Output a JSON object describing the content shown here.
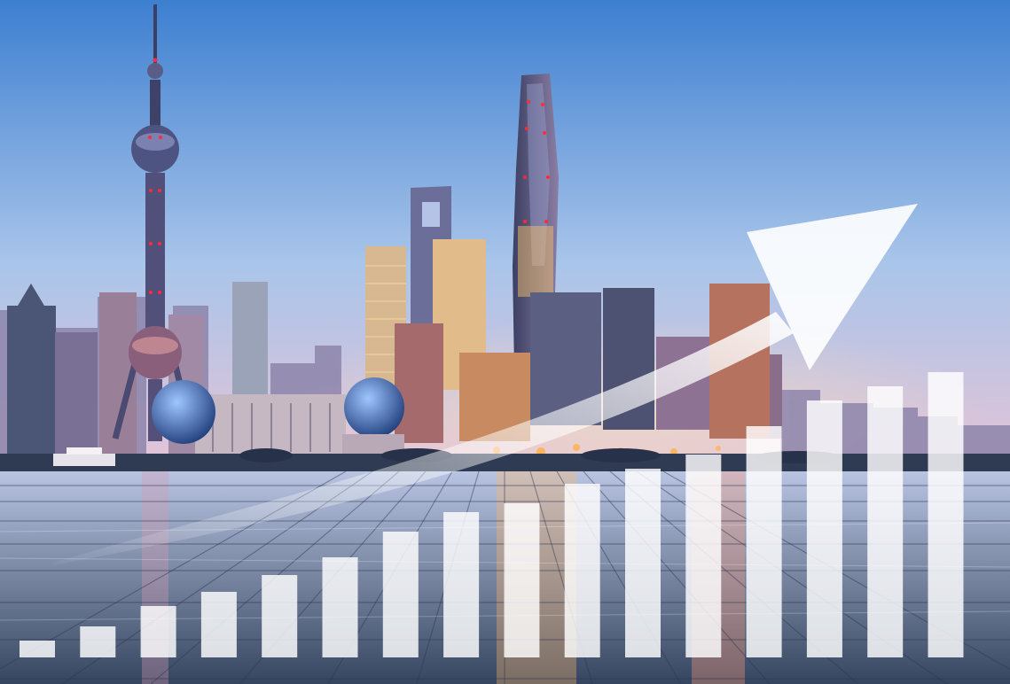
{
  "scene": {
    "subject": "city-skyline-at-dusk",
    "foreground": "reflective-plaza-floor",
    "overlay": "rising-bar-chart-with-upward-arrow"
  },
  "colors": {
    "sky_top": "#3d7fd0",
    "sky_mid": "#a9c5ea",
    "sky_horizon": "#e7c3d6",
    "tower_dark": "#3c3f63",
    "tower_light": "#8a7ea4",
    "lights_warm": "#ffb04a",
    "lights_red": "#ff2a3a",
    "floor_dark": "#35455f",
    "floor_light": "#b8c4e2",
    "overlay_white": "#ffffff"
  },
  "overlay_chart": {
    "type": "bar",
    "bar_levels": [
      0.06,
      0.11,
      0.18,
      0.23,
      0.29,
      0.35,
      0.44,
      0.51,
      0.54,
      0.61,
      0.66,
      0.71,
      0.81,
      0.9,
      0.95,
      1.0
    ],
    "trend": "upward"
  }
}
